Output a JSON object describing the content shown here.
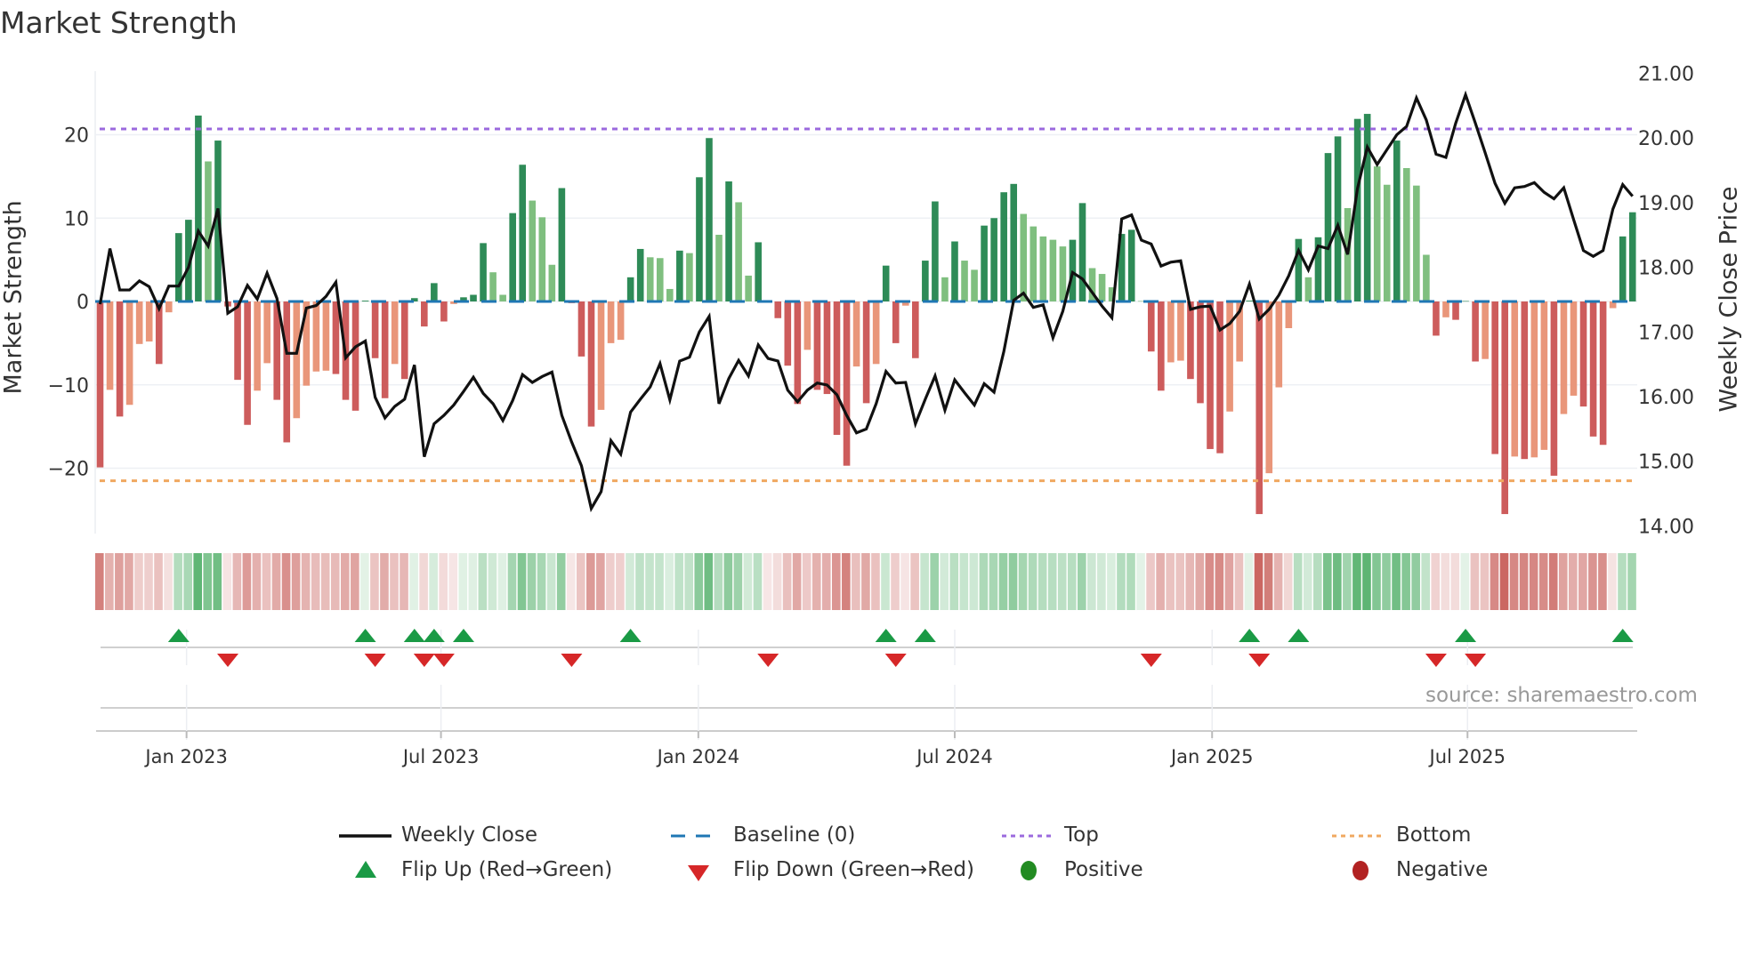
{
  "title": "Market Strength",
  "source": "source: sharemaestro.com",
  "colors": {
    "pos_strong": "#2e8b57",
    "pos_weak": "#7fbf7f",
    "neg_strong": "#cd5c5c",
    "neg_weak": "#e9967a",
    "close": "#111111",
    "baseline": "#1f77b4",
    "top": "#9b6ade",
    "bottom": "#f0a860",
    "flip_up": "#1a9a45",
    "flip_down": "#d62728",
    "positive": "#228b22",
    "negative": "#b22222"
  },
  "legend": {
    "weekly_close": "Weekly Close",
    "baseline": "Baseline (0)",
    "top": "Top",
    "bottom": "Bottom",
    "flip_up": "Flip Up (Red→Green)",
    "flip_down": "Flip Down (Green→Red)",
    "positive": "Positive",
    "negative": "Negative"
  },
  "chart_data": {
    "type": "bar",
    "title": "Market Strength",
    "ylabel": "Market Strength",
    "y2label": "Weekly Close Price",
    "ylim": [
      -27.5,
      27.5
    ],
    "y2lim": [
      14.0,
      21.0
    ],
    "yticks": [
      {
        "v": 20,
        "label": "20"
      },
      {
        "v": 10,
        "label": "10"
      },
      {
        "v": 0,
        "label": "0"
      },
      {
        "v": -10,
        "label": "−10"
      },
      {
        "v": -20,
        "label": "−20"
      }
    ],
    "y2ticks": [
      {
        "v": 21,
        "label": "21.00"
      },
      {
        "v": 20,
        "label": "20.00"
      },
      {
        "v": 19,
        "label": "19.00"
      },
      {
        "v": 18,
        "label": "18.00"
      },
      {
        "v": 17,
        "label": "17.00"
      },
      {
        "v": 16,
        "label": "16.00"
      },
      {
        "v": 15,
        "label": "15.00"
      },
      {
        "v": 14,
        "label": "14.00"
      }
    ],
    "xticks": [
      {
        "week": 8.8,
        "label": "Jan 2023"
      },
      {
        "week": 34.7,
        "label": "Jul 2023"
      },
      {
        "week": 60.9,
        "label": "Jan 2024"
      },
      {
        "week": 87.0,
        "label": "Jul 2024"
      },
      {
        "week": 113.2,
        "label": "Jan 2025"
      },
      {
        "week": 139.2,
        "label": "Jul 2025"
      }
    ],
    "top_level": 20.7,
    "bottom_level": -21.5,
    "baseline": 0,
    "strength": [
      -19.9,
      -10.6,
      -13.8,
      -12.4,
      -5.1,
      -4.8,
      -7.5,
      -1.3,
      8.2,
      9.8,
      22.3,
      16.8,
      19.3,
      -0.6,
      -9.4,
      -14.8,
      -10.7,
      -7.4,
      -11.8,
      -16.9,
      -14.0,
      -10.1,
      -8.4,
      -8.3,
      -8.7,
      -11.8,
      -13.1,
      0.1,
      -6.8,
      -11.6,
      -7.5,
      -9.3,
      0.4,
      -3.0,
      2.2,
      -2.4,
      -0.3,
      0.5,
      0.8,
      7.0,
      3.5,
      0.8,
      10.6,
      16.4,
      12.1,
      10.1,
      4.4,
      13.6,
      -0.2,
      -6.6,
      -15.0,
      -13.0,
      -5.0,
      -4.6,
      2.9,
      6.3,
      5.3,
      5.2,
      1.5,
      6.1,
      5.8,
      14.9,
      19.6,
      8.0,
      14.4,
      11.9,
      3.1,
      7.1,
      -0.1,
      -2.0,
      -7.7,
      -12.3,
      -5.8,
      -10.6,
      -11.1,
      -16.0,
      -19.7,
      -7.8,
      -12.2,
      -7.5,
      4.3,
      -5.0,
      -0.5,
      -6.8,
      4.9,
      12.0,
      2.9,
      7.2,
      4.9,
      3.8,
      9.1,
      10.0,
      13.1,
      14.1,
      10.5,
      9.0,
      7.8,
      7.4,
      6.6,
      7.4,
      11.8,
      4.0,
      3.3,
      1.7,
      8.1,
      8.6,
      0.05,
      -6.0,
      -10.7,
      -7.3,
      -7.1,
      -9.3,
      -12.2,
      -17.7,
      -18.2,
      -13.2,
      -7.2,
      0.1,
      -25.5,
      -20.6,
      -10.3,
      -3.2,
      7.5,
      2.9,
      7.7,
      17.8,
      19.8,
      11.2,
      21.9,
      22.5,
      16.2,
      14.0,
      19.3,
      16.0,
      13.9,
      5.6,
      -4.1,
      -1.9,
      -2.2,
      0.05,
      -7.2,
      -6.9,
      -18.3,
      -25.5,
      -18.6,
      -18.9,
      -18.7,
      -17.8,
      -20.9,
      -13.5,
      -11.3,
      -12.6,
      -16.2,
      -17.2,
      -0.8,
      7.8,
      10.7
    ],
    "weekly_close": [
      17.43,
      18.29,
      17.65,
      17.65,
      17.79,
      17.7,
      17.36,
      17.71,
      17.71,
      18.0,
      18.56,
      18.33,
      18.91,
      17.29,
      17.39,
      17.72,
      17.51,
      17.91,
      17.52,
      16.67,
      16.67,
      17.37,
      17.41,
      17.55,
      17.77,
      16.6,
      16.77,
      16.86,
      15.99,
      15.67,
      15.85,
      15.96,
      16.49,
      15.07,
      15.58,
      15.71,
      15.87,
      16.08,
      16.3,
      16.05,
      15.89,
      15.63,
      15.94,
      16.34,
      16.22,
      16.31,
      16.38,
      15.71,
      15.3,
      14.93,
      14.27,
      14.53,
      15.32,
      15.11,
      15.76,
      15.96,
      16.15,
      16.51,
      15.95,
      16.55,
      16.61,
      17.0,
      17.24,
      15.89,
      16.28,
      16.56,
      16.32,
      16.8,
      16.59,
      16.55,
      16.1,
      15.92,
      16.1,
      16.21,
      16.18,
      16.03,
      15.71,
      15.44,
      15.5,
      15.89,
      16.39,
      16.21,
      16.22,
      15.58,
      15.96,
      16.32,
      15.79,
      16.26,
      16.06,
      15.87,
      16.2,
      16.07,
      16.7,
      17.49,
      17.6,
      17.38,
      17.42,
      16.91,
      17.32,
      17.92,
      17.82,
      17.61,
      17.4,
      17.22,
      18.75,
      18.81,
      18.42,
      18.36,
      18.02,
      18.08,
      18.1,
      17.35,
      17.39,
      17.4,
      17.03,
      17.13,
      17.32,
      17.74,
      17.2,
      17.35,
      17.57,
      17.87,
      18.26,
      17.96,
      18.33,
      18.29,
      18.65,
      18.2,
      19.22,
      19.86,
      19.59,
      19.82,
      20.05,
      20.18,
      20.62,
      20.28,
      19.75,
      19.7,
      20.23,
      20.67,
      20.23,
      19.77,
      19.3,
      18.99,
      19.23,
      19.25,
      19.31,
      19.16,
      19.06,
      19.23,
      18.74,
      18.26,
      18.17,
      18.26,
      18.9,
      19.28,
      19.1
    ]
  }
}
